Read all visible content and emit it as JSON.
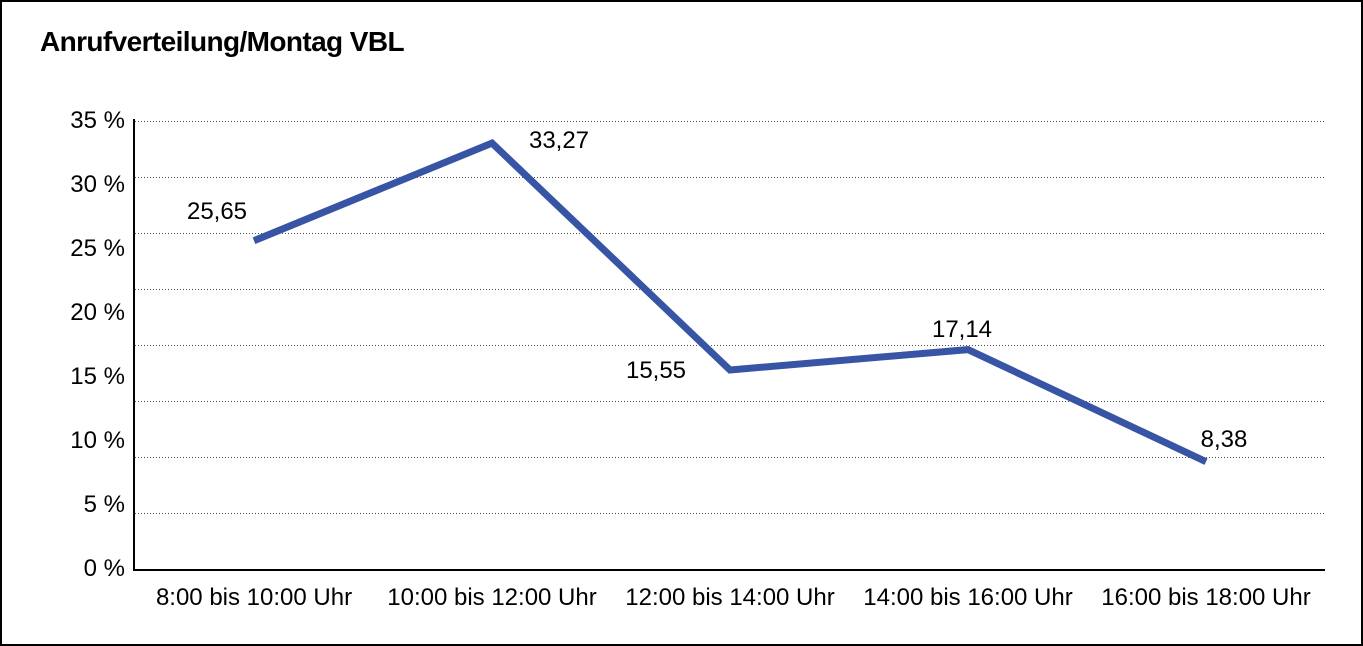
{
  "title": "Anrufverteilung/Montag VBL",
  "colors": {
    "line": "#3754A5",
    "grid_dots": "#4d4d4d",
    "axis": "#000000",
    "text": "#000000",
    "background": "#ffffff",
    "frame_border": "#000000"
  },
  "chart_data": {
    "type": "line",
    "title": "Anrufverteilung/Montag VBL",
    "categories": [
      "8:00 bis 10:00 Uhr",
      "10:00 bis 12:00 Uhr",
      "12:00 bis 14:00 Uhr",
      "14:00 bis 16:00 Uhr",
      "16:00 bis 18:00 Uhr"
    ],
    "values": [
      25.65,
      33.27,
      15.55,
      17.14,
      8.38
    ],
    "point_labels": [
      "25,65",
      "33,27",
      "15,55",
      "17,14",
      "8,38"
    ],
    "y_ticks": [
      "35 %",
      "30 %",
      "25 %",
      "20 %",
      "15 %",
      "10 %",
      "5 %",
      "0 %"
    ],
    "y_tick_values": [
      35,
      30,
      25,
      20,
      15,
      10,
      5,
      0
    ],
    "ylim": [
      0,
      35
    ],
    "xlabel": "",
    "ylabel": "",
    "legend": "none",
    "grid": "horizontal-dotted",
    "line_color": "#3754A5"
  }
}
